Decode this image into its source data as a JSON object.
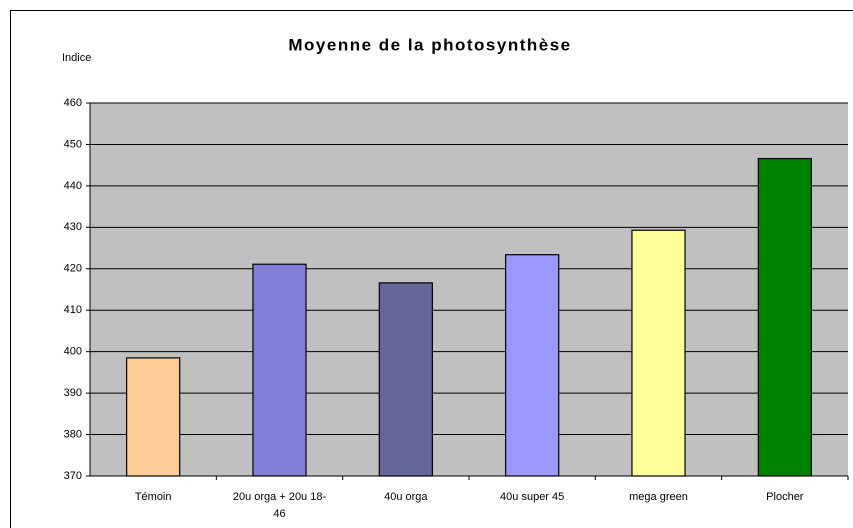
{
  "chart_data": {
    "type": "bar",
    "title": "Moyenne de la photosynthèse",
    "y_label": "Indice",
    "categories": [
      "Témoin",
      "20u orga + 20u 18-46",
      "40u orga",
      "40u super 45",
      "mega green",
      "Plocher"
    ],
    "values": [
      398.5,
      421.1,
      416.6,
      423.4,
      429.3,
      446.6
    ],
    "colors": [
      "#ffcc99",
      "#8080d8",
      "#666699",
      "#9999ff",
      "#ffff99",
      "#008000"
    ],
    "ylim": [
      370,
      460
    ],
    "yticks": [
      370,
      380,
      390,
      400,
      410,
      420,
      430,
      440,
      450,
      460
    ],
    "grid": true
  }
}
